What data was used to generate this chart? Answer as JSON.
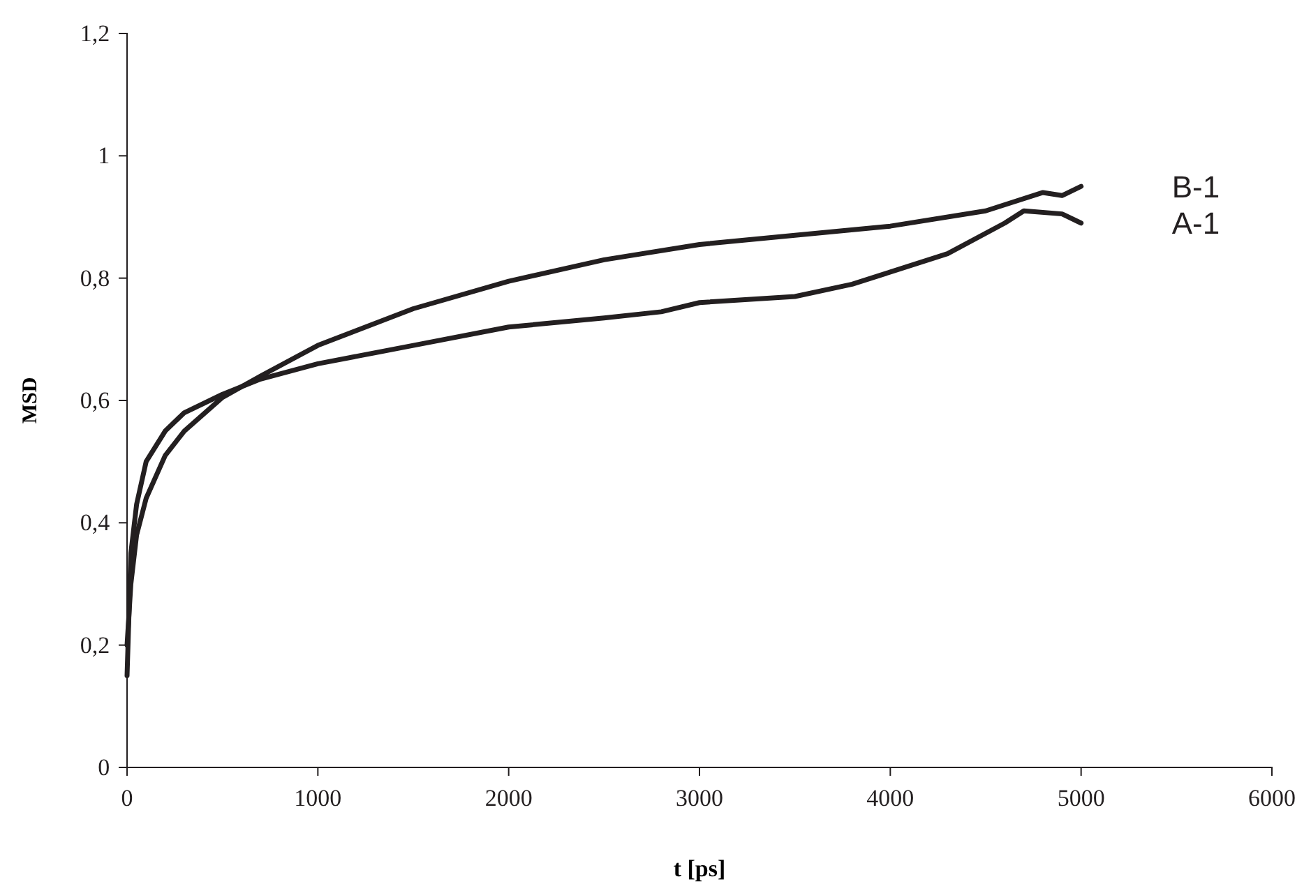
{
  "chart_data": {
    "type": "line",
    "xlabel": "t [ps]",
    "ylabel": "MSD",
    "xlim": [
      0,
      6000
    ],
    "xticks": [
      0,
      1000,
      2000,
      3000,
      4000,
      5000,
      6000
    ],
    "ylim": [
      0,
      1.2
    ],
    "yticks": [
      0,
      {
        "value": 0.2,
        "label": "0,2"
      },
      {
        "value": 0.4,
        "label": "0,4"
      },
      {
        "value": 0.6,
        "label": "0,6"
      },
      {
        "value": 0.8,
        "label": "0,8"
      },
      1,
      {
        "value": 1.2,
        "label": "1,2"
      }
    ],
    "grid": false,
    "legend": false,
    "series": [
      {
        "name": "B-1",
        "color": "#231f20",
        "x": [
          0,
          20,
          50,
          100,
          200,
          300,
          500,
          700,
          1000,
          1500,
          2000,
          2500,
          3000,
          3500,
          4000,
          4500,
          4800,
          4900,
          5000
        ],
        "values": [
          0.2,
          0.3,
          0.38,
          0.44,
          0.51,
          0.55,
          0.605,
          0.64,
          0.69,
          0.75,
          0.795,
          0.83,
          0.855,
          0.87,
          0.885,
          0.91,
          0.94,
          0.935,
          0.95
        ]
      },
      {
        "name": "A-1",
        "color": "#231f20",
        "x": [
          0,
          20,
          50,
          100,
          200,
          300,
          500,
          700,
          1000,
          1500,
          2000,
          2500,
          2800,
          3000,
          3500,
          3800,
          4000,
          4300,
          4600,
          4700,
          4900,
          5000
        ],
        "values": [
          0.15,
          0.35,
          0.43,
          0.5,
          0.55,
          0.58,
          0.61,
          0.635,
          0.66,
          0.69,
          0.72,
          0.735,
          0.745,
          0.76,
          0.77,
          0.79,
          0.81,
          0.84,
          0.89,
          0.91,
          0.905,
          0.89
        ]
      }
    ]
  }
}
